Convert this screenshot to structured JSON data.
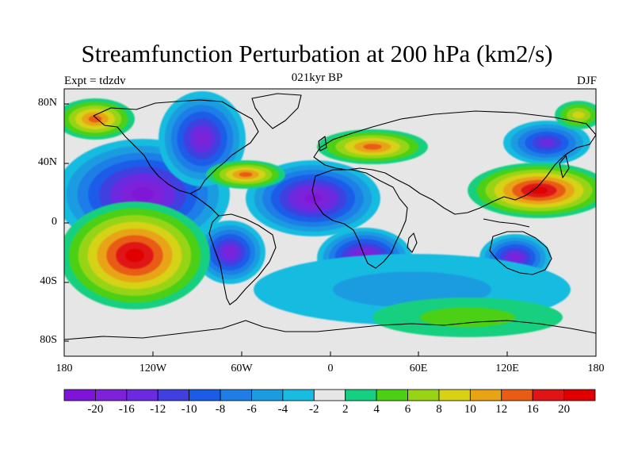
{
  "title": "Streamfunction Perturbation at 200 hPa (km2/s)",
  "subtitle_center": "021kyr BP",
  "subtitle_left": "Expt = tdzdv",
  "subtitle_right": "DJF",
  "lat_ticks": [
    "80N",
    "40N",
    "0",
    "40S",
    "80S"
  ],
  "lon_ticks": [
    "180",
    "120W",
    "60W",
    "0",
    "60E",
    "120E",
    "180"
  ],
  "colorbar": {
    "labels": [
      "-20",
      "-16",
      "-12",
      "-10",
      "-8",
      "-6",
      "-4",
      "-2",
      "2",
      "4",
      "6",
      "8",
      "10",
      "12",
      "16",
      "20"
    ],
    "colors": [
      "#7f14d8",
      "#7d22d8",
      "#6c2ae0",
      "#4040e0",
      "#1a5ce8",
      "#1e7ee6",
      "#1a9ce0",
      "#18bce0",
      "#e6e6e6",
      "#14d080",
      "#4cd014",
      "#98d414",
      "#d6d214",
      "#e8a414",
      "#e85c14",
      "#e01414",
      "#e00000"
    ]
  },
  "colors": {
    "neutral": "#e6e6e6",
    "coast": "#000000"
  }
}
